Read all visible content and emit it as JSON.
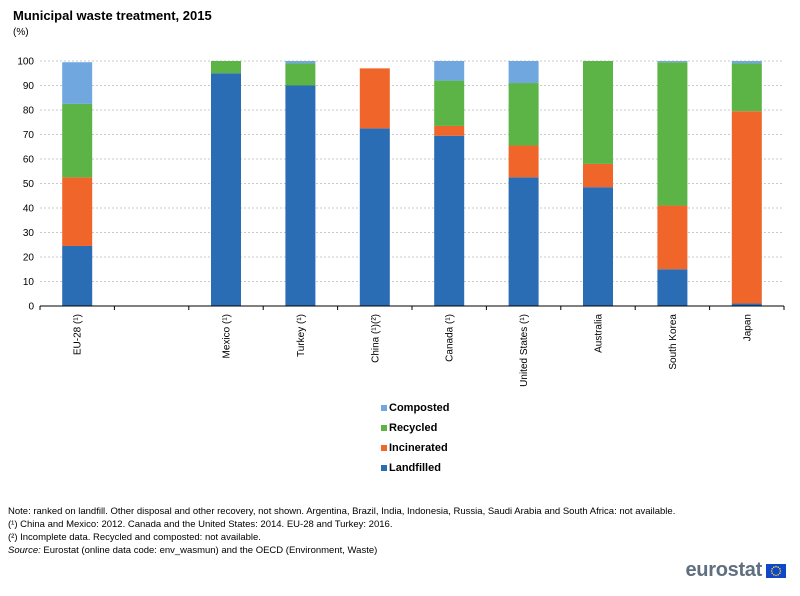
{
  "chart_data": {
    "type": "bar",
    "stacked": true,
    "title": "Municipal waste treatment, 2015",
    "unit": "(%)",
    "ylim": [
      0,
      100
    ],
    "yticks": [
      0,
      10,
      20,
      30,
      40,
      50,
      60,
      70,
      80,
      90,
      100
    ],
    "grid": true,
    "categories": [
      "EU-28 (¹)",
      "",
      "Mexico (¹)",
      "Turkey (¹)",
      "China (¹)(²)",
      "Canada (¹)",
      "United States (¹)",
      "Australia",
      "South Korea",
      "Japan"
    ],
    "series": [
      {
        "name": "Landfilled",
        "color": "#2a6db5",
        "values": [
          24.5,
          null,
          95,
          90,
          72.5,
          69.5,
          52.5,
          48.5,
          15,
          1
        ]
      },
      {
        "name": "Incinerated",
        "color": "#f0662a",
        "values": [
          28,
          null,
          0,
          0,
          24.5,
          4,
          13,
          9.5,
          26,
          78.5
        ]
      },
      {
        "name": "Recycled",
        "color": "#5bb445",
        "values": [
          30,
          null,
          5,
          9,
          0,
          18.5,
          25.5,
          42,
          58.5,
          19.5
        ]
      },
      {
        "name": "Composted",
        "color": "#6fa7de",
        "values": [
          17,
          null,
          0,
          1,
          0,
          8,
          9,
          0,
          0.5,
          1
        ]
      }
    ],
    "legend_order": [
      "Composted",
      "Recycled",
      "Incinerated",
      "Landfilled"
    ]
  },
  "notes": {
    "line1": "Note: ranked on landfill. Other disposal and other recovery, not shown. Argentina, Brazil, India, Indonesia, Russia, Saudi Arabia and South Africa: not available.",
    "line2": "(¹) China and Mexico: 2012. Canada and the United States: 2014. EU-28 and Turkey: 2016.",
    "line3": "(²) Incomplete data. Recycled and composted: not available.",
    "source_label": "Source:",
    "source_text": " Eurostat (online data code: env_wasmun) and the OECD (Environment, Waste)"
  },
  "logo": {
    "text": "eurostat"
  }
}
